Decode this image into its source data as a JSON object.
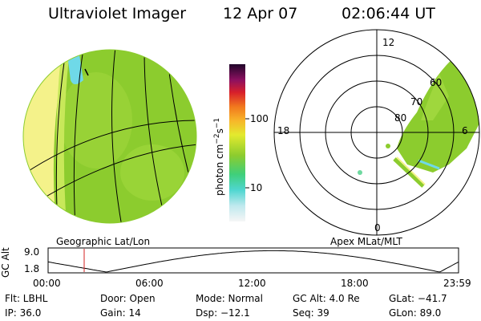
{
  "header": {
    "title": "Ultraviolet Imager",
    "date": "12 Apr 07",
    "time": "02:06:44 UT"
  },
  "colorbar": {
    "label": "photon cm",
    "label_sup1": "−2",
    "label_mid": "s",
    "label_sup2": "−1",
    "ticks": [
      "100",
      "10"
    ]
  },
  "left_image": {
    "caption": "Geographic Lat/Lon"
  },
  "right_image": {
    "caption": "Apex MLat/MLT",
    "mlt_labels": {
      "top": "12",
      "left": "18",
      "right": "6",
      "bottom": "0"
    },
    "lat_labels": [
      "60",
      "70",
      "80"
    ]
  },
  "altitude_plot": {
    "ylabel": "GC Alt",
    "yticks": [
      "9.0",
      "1.8"
    ],
    "xticks": [
      "00:00",
      "06:00",
      "12:00",
      "18:00",
      "23:59"
    ],
    "marker_time_hours": 2.11
  },
  "status": {
    "filter": "Flt: LBHL",
    "ip": "IP: 36.0",
    "door": "Door: Open",
    "gain": "Gain: 14",
    "mode": "Mode: Normal",
    "dsp": "Dsp:   −12.1",
    "gc_alt": "GC Alt: 4.0 Re",
    "seq": "Seq: 39",
    "glat": "GLat:  −41.7",
    "glon": "GLon:  89.0"
  },
  "colors": {
    "disk_green": "#8ccc2e",
    "dayglow_yellow": "#f4f28a",
    "marker_red": "#d42020"
  }
}
